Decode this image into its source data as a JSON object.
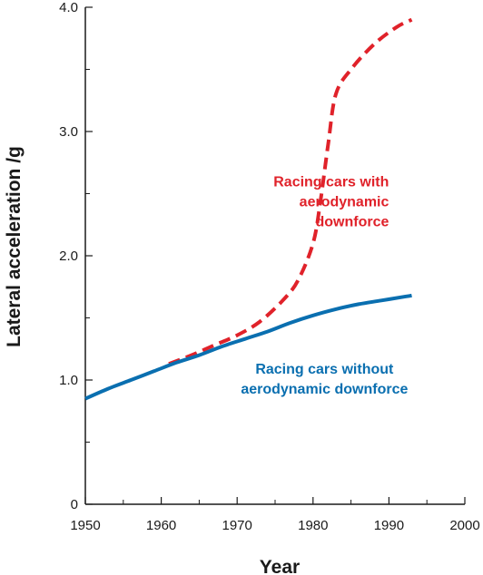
{
  "chart_data": {
    "type": "line",
    "title": "",
    "xlabel": "Year",
    "ylabel": "Lateral acceleration /g",
    "xlim": [
      1950,
      2000
    ],
    "ylim": [
      0,
      4.0
    ],
    "x_ticks": [
      1950,
      1960,
      1970,
      1980,
      1990,
      2000
    ],
    "x_tick_labels": [
      "1950",
      "1960",
      "1970",
      "1980",
      "1990",
      "2000"
    ],
    "y_ticks": [
      0,
      1.0,
      2.0,
      3.0,
      4.0
    ],
    "y_tick_labels": [
      "0",
      "1.0",
      "2.0",
      "3.0",
      "4.0"
    ],
    "y_minor_step": 0.5,
    "x_minor_step": 5,
    "grid": false,
    "legend": "none",
    "series": [
      {
        "name": "Racing cars without aerodynamic downforce",
        "color": "#0a6fb0",
        "style": "solid",
        "x": [
          1950,
          1953,
          1956,
          1959,
          1962,
          1965,
          1968,
          1971,
          1974,
          1977,
          1980,
          1983,
          1986,
          1989,
          1992,
          1993
        ],
        "y": [
          0.85,
          0.93,
          1.0,
          1.07,
          1.14,
          1.2,
          1.27,
          1.33,
          1.39,
          1.46,
          1.52,
          1.57,
          1.61,
          1.64,
          1.67,
          1.68
        ]
      },
      {
        "name": "Racing cars with aerodynamic downforce",
        "color": "#e0222a",
        "style": "dashed",
        "x": [
          1961,
          1964,
          1967,
          1970,
          1973,
          1976,
          1978,
          1980,
          1981,
          1982,
          1983,
          1985,
          1988,
          1991,
          1993
        ],
        "y": [
          1.13,
          1.2,
          1.28,
          1.36,
          1.47,
          1.64,
          1.8,
          2.1,
          2.45,
          2.9,
          3.3,
          3.5,
          3.7,
          3.84,
          3.9
        ]
      }
    ],
    "annotations": [
      {
        "lines": [
          "Racing cars with",
          "aerodynamic",
          "downforce"
        ],
        "color": "#e0222a",
        "x": 1990,
        "y": 2.56,
        "anchor": "end"
      },
      {
        "lines": [
          "Racing cars without",
          "aerodynamic downforce"
        ],
        "color": "#0a6fb0",
        "x": 1981.5,
        "y": 1.05,
        "anchor": "middle"
      }
    ]
  }
}
